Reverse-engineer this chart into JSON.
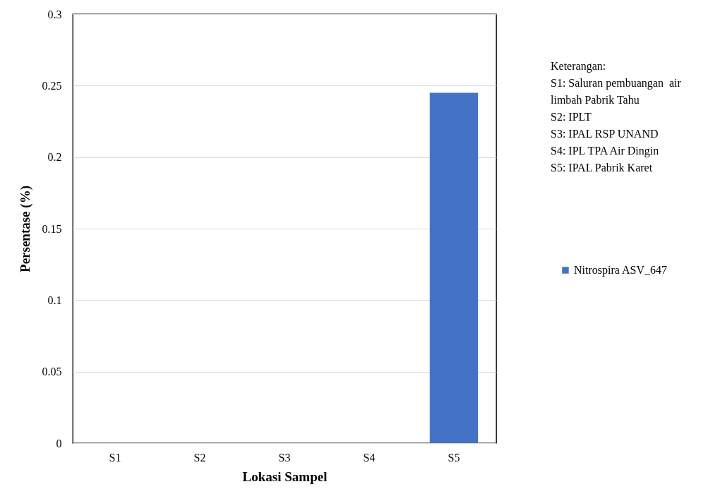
{
  "chart_data": {
    "type": "bar",
    "xlabel": "Lokasi Sampel",
    "ylabel": "Persentase (%)",
    "categories": [
      "S1",
      "S2",
      "S3",
      "S4",
      "S5"
    ],
    "series": [
      {
        "name": "Nitrospira ASV_647",
        "color": "#4472c4",
        "values": [
          0,
          0,
          0,
          0,
          0.245
        ]
      }
    ],
    "ylim": [
      0,
      0.3
    ],
    "yticks": [
      0,
      0.05,
      0.1,
      0.15,
      0.2,
      0.25,
      0.3
    ],
    "grid": "y",
    "legend": "right",
    "annotations": [
      "Keterangan:",
      "S1: Saluran pembuangan  air limbah Pabrik Tahu",
      "S2: IPLT",
      "S3: IPAL RSP UNAND",
      "S4: IPL TPA Air Dingin",
      "S5: IPAL Pabrik Karet"
    ]
  }
}
